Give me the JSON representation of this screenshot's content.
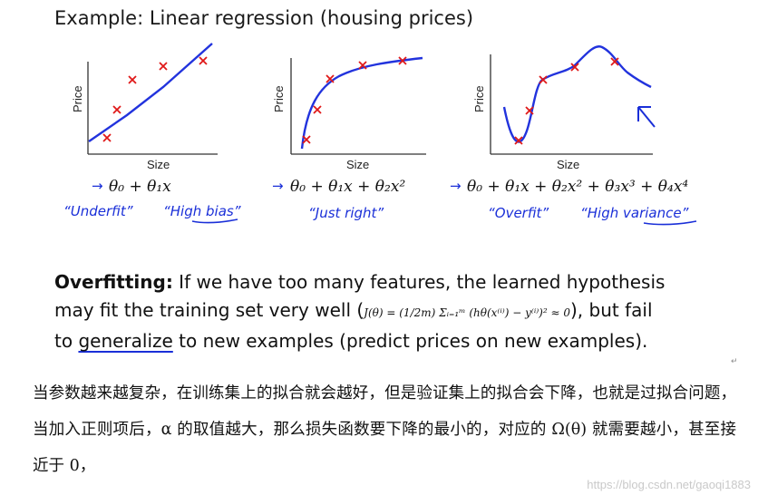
{
  "title": "Example: Linear regression (housing prices)",
  "plots": [
    {
      "ylabel": "Price",
      "xlabel": "Size",
      "formula": "θ₀ + θ₁x",
      "note_left": "“Underfit”",
      "note_right": "“High bias”"
    },
    {
      "ylabel": "Price",
      "xlabel": "Size",
      "formula": "θ₀ + θ₁x + θ₂x²",
      "note_left": "“Just right”",
      "note_right": ""
    },
    {
      "ylabel": "Price",
      "xlabel": "Size",
      "formula": "θ₀ + θ₁x + θ₂x² + θ₃x³ + θ₄x⁴",
      "note_left": "“Overfit”",
      "note_right": "“High variance”"
    }
  ],
  "overfitting": {
    "heading": "Overfitting:",
    "line1": " If we have too many features, the learned hypothesis",
    "line2a": "may fit the training set very well (",
    "formula": "J(θ) = (1/2m) Σᵢ₌₁ᵐ (hθ(x⁽ⁱ⁾) − y⁽ⁱ⁾)² ≈ 0",
    "line2b": "), but fail",
    "line3a": "to ",
    "line3u": "generalize",
    "line3b": " to new examples (predict prices on new examples)."
  },
  "return_mark": "↵",
  "chinese_paragraph": "当参数越来越复杂，在训练集上的拟合就会越好，但是验证集上的拟合会下降，也就是过拟合问题，当加入正则项后，α 的取值越大，那么损失函数要下降的最小的，对应的 Ω(θ) 就需要越小，甚至接近于 0，",
  "watermark": "https://blog.csdn.net/gaoqi1883",
  "colors": {
    "ink": "#1a2fd8",
    "mark": "#e01818"
  }
}
